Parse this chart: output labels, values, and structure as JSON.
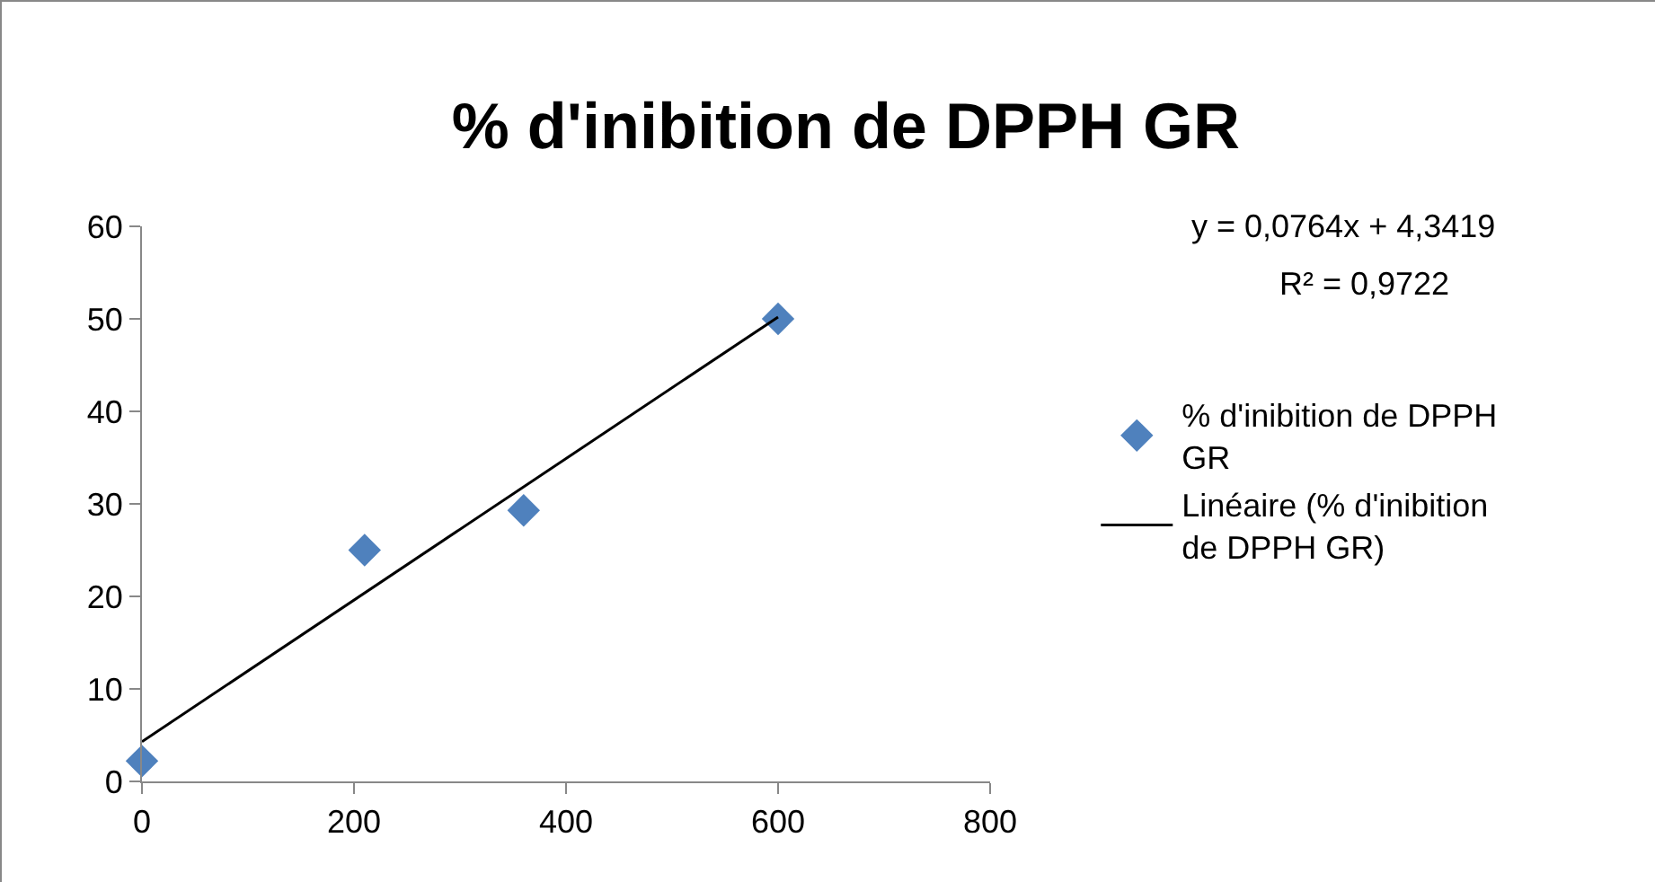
{
  "chart_data": {
    "type": "scatter",
    "title": "% d'inibition de DPPH GR",
    "x": [
      0,
      210,
      360,
      600
    ],
    "series": [
      {
        "name": "% d'inibition de DPPH GR",
        "type": "scatter",
        "color": "#4f81bd",
        "marker": "diamond",
        "values": [
          2.2,
          25,
          29.3,
          50
        ]
      },
      {
        "name": "Linéaire (% d'inibition de DPPH GR)",
        "type": "line",
        "color": "#000000",
        "marker": "none",
        "line_style": "solid",
        "x": [
          0,
          600
        ],
        "values": [
          4.3,
          50.2
        ]
      }
    ],
    "xlim": [
      0,
      800
    ],
    "xticks": [
      0,
      200,
      400,
      600,
      800
    ],
    "ylim": [
      0,
      60
    ],
    "yticks": [
      0,
      10,
      20,
      30,
      40,
      50,
      60
    ],
    "grid": false,
    "legend": "right",
    "annotations": [
      "y = 0,0764x + 4,3419",
      "R² = 0,9722"
    ]
  }
}
